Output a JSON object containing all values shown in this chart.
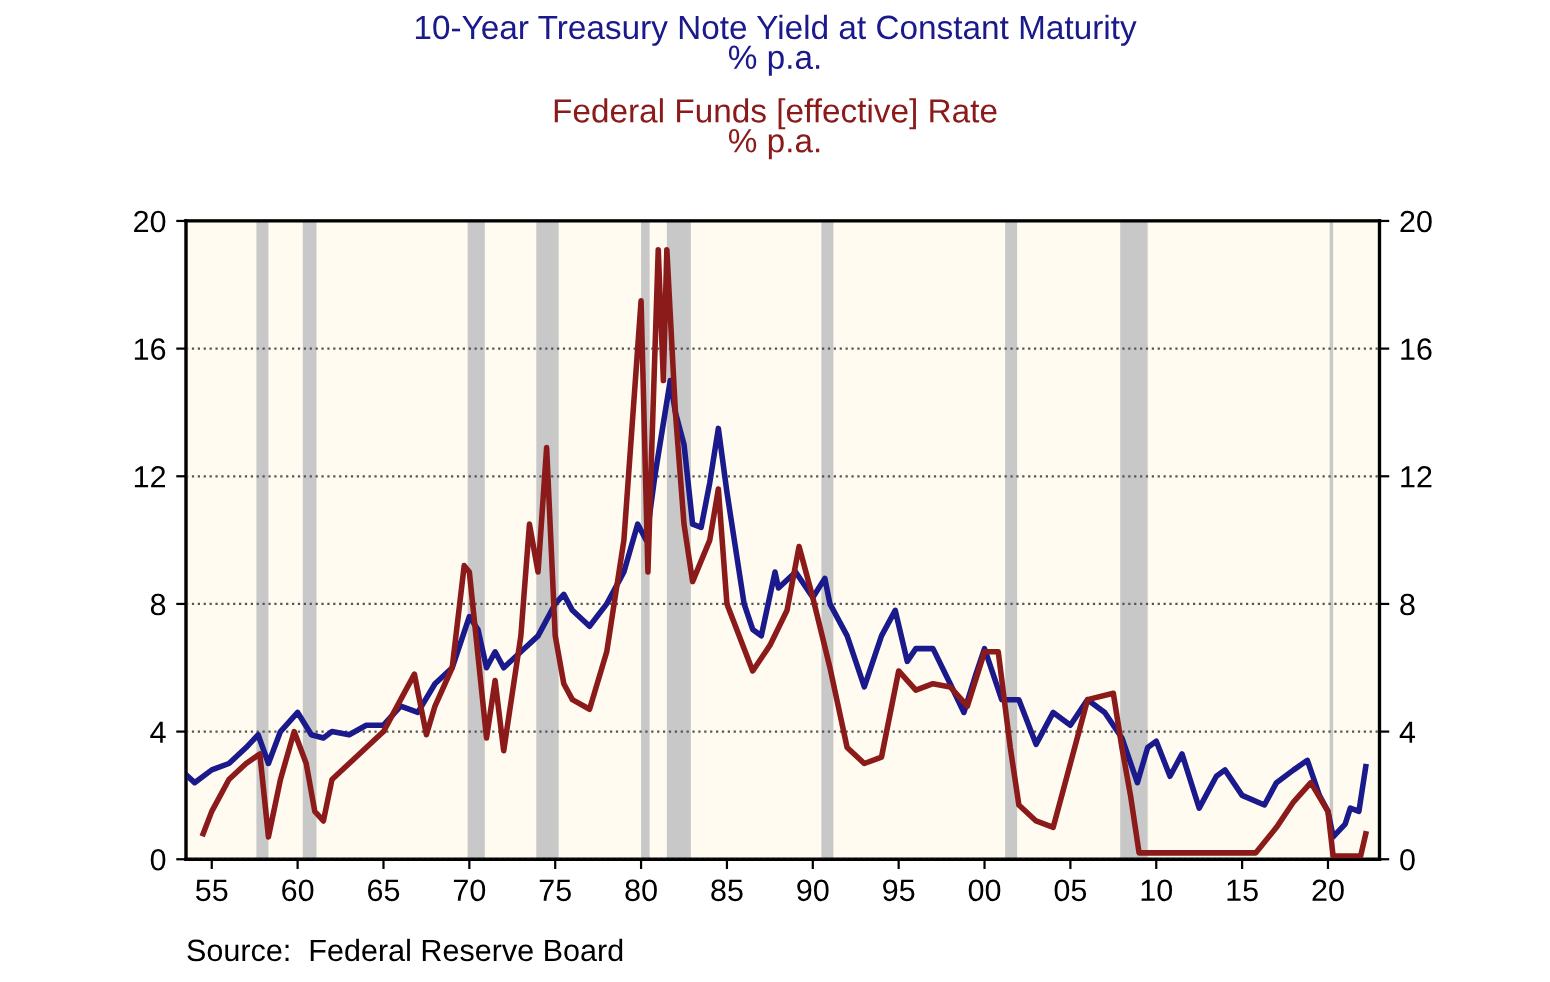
{
  "chart_data": {
    "type": "line",
    "legend": "top",
    "grid": "y",
    "line_style": "solid",
    "annotations": [
      "Source:  Federal Reserve Board"
    ],
    "xlim": [
      1953.5,
      2023
    ],
    "xticks": [
      {
        "value": 1955,
        "label": "55"
      },
      {
        "value": 1960,
        "label": "60"
      },
      {
        "value": 1965,
        "label": "65"
      },
      {
        "value": 1970,
        "label": "70"
      },
      {
        "value": 1975,
        "label": "75"
      },
      {
        "value": 1980,
        "label": "80"
      },
      {
        "value": 1985,
        "label": "85"
      },
      {
        "value": 1990,
        "label": "90"
      },
      {
        "value": 1995,
        "label": "95"
      },
      {
        "value": 2000,
        "label": "00"
      },
      {
        "value": 2005,
        "label": "05"
      },
      {
        "value": 2010,
        "label": "10"
      },
      {
        "value": 2015,
        "label": "15"
      },
      {
        "value": 2020,
        "label": "20"
      }
    ],
    "ylim": [
      0,
      20
    ],
    "yticks": [
      0,
      4,
      8,
      12,
      16,
      20
    ],
    "y2lim": [
      0,
      20
    ],
    "y2ticks": [
      0,
      4,
      8,
      12,
      16,
      20
    ],
    "bands": [
      {
        "axis": "x",
        "from": 1957.6,
        "to": 1958.3,
        "color": "#c8c8c8"
      },
      {
        "axis": "x",
        "from": 1960.3,
        "to": 1961.1,
        "color": "#c8c8c8"
      },
      {
        "axis": "x",
        "from": 1969.9,
        "to": 1970.9,
        "color": "#c8c8c8"
      },
      {
        "axis": "x",
        "from": 1973.9,
        "to": 1975.2,
        "color": "#c8c8c8"
      },
      {
        "axis": "x",
        "from": 1980.0,
        "to": 1980.5,
        "color": "#c8c8c8"
      },
      {
        "axis": "x",
        "from": 1981.5,
        "to": 1982.9,
        "color": "#c8c8c8"
      },
      {
        "axis": "x",
        "from": 1990.5,
        "to": 1991.2,
        "color": "#c8c8c8"
      },
      {
        "axis": "x",
        "from": 2001.2,
        "to": 2001.9,
        "color": "#c8c8c8"
      },
      {
        "axis": "x",
        "from": 2007.9,
        "to": 2009.5,
        "color": "#c8c8c8"
      },
      {
        "axis": "x",
        "from": 2020.1,
        "to": 2020.3,
        "color": "#c8c8c8"
      }
    ],
    "series": [
      {
        "name": "10-Year Treasury Note Yield at Constant Maturity\n% p.a.",
        "color": "#1a1a8c",
        "x": [
          1953.6,
          1954,
          1955,
          1956,
          1957,
          1957.7,
          1958.3,
          1959,
          1960,
          1960.8,
          1961.5,
          1962,
          1963,
          1964,
          1965,
          1966,
          1967,
          1968,
          1969,
          1970,
          1970.5,
          1971,
          1971.5,
          1972,
          1973,
          1974,
          1975,
          1975.5,
          1976,
          1977,
          1978,
          1979,
          1979.8,
          1980.3,
          1980.8,
          1981.7,
          1982,
          1982.5,
          1983,
          1983.5,
          1984,
          1984.5,
          1985,
          1986,
          1986.5,
          1987,
          1987.8,
          1988,
          1989,
          1990,
          1990.7,
          1991,
          1992,
          1993,
          1994,
          1994.8,
          1995.5,
          1996,
          1997,
          1998,
          1998.8,
          1999.5,
          2000,
          2001,
          2002,
          2003,
          2004,
          2005,
          2006,
          2007,
          2008,
          2008.9,
          2009.5,
          2010,
          2010.8,
          2011.5,
          2012.5,
          2013.5,
          2014,
          2015,
          2016.3,
          2017,
          2018,
          2018.8,
          2019.5,
          2020,
          2020.3,
          2021,
          2021.3,
          2021.8,
          2022.2
        ],
        "values": [
          2.6,
          2.4,
          2.8,
          3.0,
          3.5,
          3.9,
          3.0,
          4.0,
          4.6,
          3.9,
          3.8,
          4.0,
          3.9,
          4.2,
          4.2,
          4.8,
          4.6,
          5.5,
          6.0,
          7.6,
          7.2,
          6.0,
          6.5,
          6.0,
          6.5,
          7.0,
          8.0,
          8.3,
          7.8,
          7.3,
          8.0,
          9.0,
          10.5,
          10.0,
          12.0,
          15.0,
          14.0,
          13.0,
          10.5,
          10.4,
          11.8,
          13.5,
          11.5,
          8.0,
          7.2,
          7.0,
          9.0,
          8.5,
          9.0,
          8.2,
          8.8,
          8.0,
          7.0,
          5.4,
          7.0,
          7.8,
          6.2,
          6.6,
          6.6,
          5.5,
          4.6,
          5.8,
          6.6,
          5.0,
          5.0,
          3.6,
          4.6,
          4.2,
          5.0,
          4.6,
          3.8,
          2.4,
          3.5,
          3.7,
          2.6,
          3.3,
          1.6,
          2.6,
          2.8,
          2.0,
          1.7,
          2.4,
          2.8,
          3.1,
          2.0,
          1.5,
          0.7,
          1.1,
          1.6,
          1.5,
          2.9
        ]
      },
      {
        "name": "Federal Funds [effective] Rate\n% p.a.",
        "color": "#8b1a1a",
        "x": [
          1954.5,
          1955,
          1956,
          1957,
          1957.8,
          1958.3,
          1959,
          1959.8,
          1960.5,
          1961,
          1961.5,
          1962,
          1963,
          1964,
          1965,
          1966,
          1966.8,
          1967.5,
          1968,
          1969,
          1969.7,
          1970,
          1971,
          1971.5,
          1972,
          1973,
          1973.5,
          1974,
          1974.5,
          1975,
          1975.5,
          1976,
          1977,
          1978,
          1979,
          1980,
          1980.4,
          1980.6,
          1981,
          1981.3,
          1981.5,
          1982,
          1982.5,
          1983,
          1984,
          1984.5,
          1985,
          1986.5,
          1987.5,
          1988.5,
          1989.2,
          1990,
          1991,
          1992,
          1993,
          1994,
          1995,
          1996,
          1997,
          1998,
          1999,
          2000,
          2000.8,
          2001.5,
          2002,
          2003,
          2004,
          2005,
          2006,
          2007.5,
          2008,
          2008.5,
          2009,
          2015.8,
          2017,
          2018,
          2019,
          2020,
          2020.3,
          2021.9,
          2022.2
        ],
        "values": [
          0.8,
          1.5,
          2.5,
          3.0,
          3.3,
          0.7,
          2.5,
          4.0,
          3.0,
          1.5,
          1.2,
          2.5,
          3.0,
          3.5,
          4.0,
          5.0,
          5.8,
          3.9,
          4.8,
          6.0,
          9.2,
          9.0,
          3.8,
          5.6,
          3.4,
          7.0,
          10.5,
          9.0,
          12.9,
          7.0,
          5.5,
          5.0,
          4.7,
          6.5,
          10.0,
          17.5,
          9.0,
          12.5,
          19.1,
          15.0,
          19.1,
          14.0,
          10.5,
          8.7,
          10.0,
          11.6,
          8.0,
          5.9,
          6.7,
          7.8,
          9.8,
          8.2,
          6.0,
          3.5,
          3.0,
          3.2,
          5.9,
          5.3,
          5.5,
          5.4,
          4.8,
          6.5,
          6.5,
          3.5,
          1.7,
          1.2,
          1.0,
          3.0,
          5.0,
          5.2,
          3.5,
          2.0,
          0.2,
          0.2,
          1.0,
          1.8,
          2.4,
          1.5,
          0.1,
          0.1,
          0.8
        ]
      }
    ]
  }
}
